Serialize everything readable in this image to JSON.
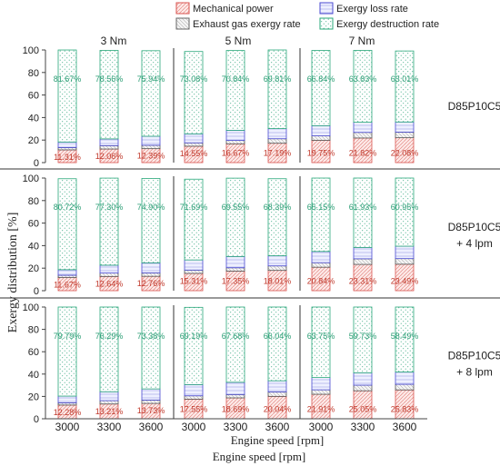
{
  "chart_data": {
    "type": "bar",
    "stacked": true,
    "ylabel": "Exergy distribution [%]",
    "xlabel": "Engine speed [rpm]",
    "xlabel_secondary": "Engine speed [rpm]",
    "ylim": [
      0,
      100
    ],
    "yticks": [
      "0",
      "20",
      "40",
      "60",
      "80",
      "100"
    ],
    "categories": [
      "3000",
      "3300",
      "3600",
      "3000",
      "3300",
      "3600",
      "3000",
      "3300",
      "3600"
    ],
    "load_groups": [
      "3 Nm",
      "5 Nm",
      "7 Nm"
    ],
    "grid": false,
    "legend": {
      "placement": "top",
      "entries": [
        {
          "name": "Mechanical power",
          "color": "#d9534f"
        },
        {
          "name": "Exergy loss rate",
          "color": "#4a4ad0"
        },
        {
          "name": "Exhaust gas exergy rate",
          "color": "#666666"
        },
        {
          "name": "Exergy destruction rate",
          "color": "#2aa87a"
        }
      ]
    },
    "panels": [
      {
        "label_line1": "D85P10C5",
        "label_line2": "",
        "mechanical_power": [
          11.31,
          12.06,
          12.39,
          14.55,
          16.67,
          17.19,
          19.75,
          21.82,
          22.08
        ],
        "mechanical_labels": [
          "11.31%",
          "12.06%",
          "12.39%",
          "14.55%",
          "16.67%",
          "17.19%",
          "19.75%",
          "21.82%",
          "22.08%"
        ],
        "exhaust_gas_exergy": [
          2,
          3,
          3,
          3,
          3,
          4,
          4,
          5,
          5
        ],
        "exergy_loss": [
          5,
          6,
          8,
          8,
          9,
          9,
          9,
          9,
          9
        ],
        "exergy_destruction": [
          81.67,
          78.56,
          75.94,
          73.08,
          70.84,
          69.81,
          66.84,
          63.83,
          63.01
        ],
        "destruction_labels": [
          "81.67%",
          "78.56%",
          "75.94%",
          "73.08%",
          "70.84%",
          "69.81%",
          "66.84%",
          "63.83%",
          "63.01%"
        ]
      },
      {
        "label_line1": "D85P10C5",
        "label_line2": "+ 4 lpm",
        "mechanical_power": [
          11.67,
          12.64,
          12.76,
          15.31,
          17.35,
          18.01,
          20.84,
          23.31,
          23.49
        ],
        "mechanical_labels": [
          "11.67%",
          "12.64%",
          "12.76%",
          "15.31%",
          "17.35%",
          "18.01%",
          "20.84%",
          "23.31%",
          "23.49%"
        ],
        "exhaust_gas_exergy": [
          2,
          3,
          3,
          3,
          3,
          4,
          4,
          5,
          5
        ],
        "exergy_loss": [
          5,
          7,
          9,
          9,
          10,
          9,
          10,
          10,
          11
        ],
        "exergy_destruction": [
          80.72,
          77.3,
          74.9,
          71.69,
          69.55,
          68.39,
          65.15,
          61.93,
          60.95
        ],
        "destruction_labels": [
          "80.72%",
          "77.30%",
          "74.90%",
          "71.69%",
          "69.55%",
          "68.39%",
          "65.15%",
          "61.93%",
          "60.95%"
        ]
      },
      {
        "label_line1": "D85P10C5",
        "label_line2": "+ 8 lpm",
        "mechanical_power": [
          12.28,
          13.21,
          13.73,
          17.55,
          18.69,
          20.04,
          21.91,
          25.05,
          25.83
        ],
        "mechanical_labels": [
          "12.28%",
          "13.21%",
          "13.73%",
          "17.55%",
          "18.69%",
          "20.04%",
          "21.91%",
          "25.05%",
          "25.83%"
        ],
        "exhaust_gas_exergy": [
          2,
          3,
          3,
          3,
          3,
          4,
          4,
          5,
          5
        ],
        "exergy_loss": [
          6,
          8,
          10,
          10,
          11,
          10,
          11,
          11,
          11
        ],
        "exergy_destruction": [
          79.79,
          76.29,
          73.38,
          69.19,
          67.68,
          66.04,
          63.75,
          59.73,
          58.49
        ],
        "destruction_labels": [
          "79.79%",
          "76.29%",
          "73.38%",
          "69.19%",
          "67.68%",
          "66.04%",
          "63.75%",
          "59.73%",
          "58.49%"
        ]
      }
    ]
  }
}
